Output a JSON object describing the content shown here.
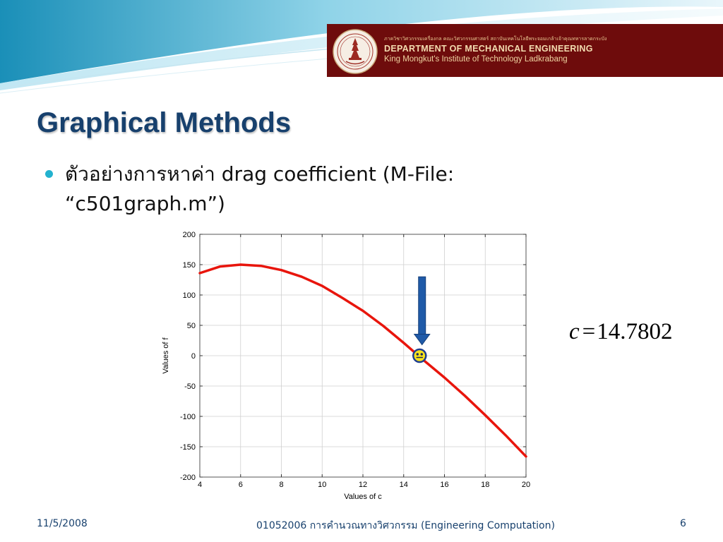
{
  "header": {
    "line1": "ภาควิชาวิศวกรรมเครื่องกล คณะวิศวกรรมศาสตร์ สถาบันเทคโนโลยีพระจอมเกล้าเจ้าคุณทหารลาดกระบัง",
    "line2": "DEPARTMENT OF MECHANICAL ENGINEERING",
    "line3": "King Mongkut's Institute of Technology Ladkrabang",
    "banner_color": "#6e0c0c"
  },
  "slide": {
    "title": "Graphical Methods",
    "bullet_thai": "ตัวอย่างการหาค่า",
    "bullet_rest": "drag coefficient (M-File:",
    "bullet_line2": "“c501graph.m”)"
  },
  "equation": {
    "variable": "c",
    "equals": "=",
    "value": "14.7802"
  },
  "footer": {
    "date": "11/5/2008",
    "course": "01052006 การคำนวณทางวิศวกรรม (Engineering Computation)",
    "page": "6"
  },
  "chart_data": {
    "type": "line",
    "xlabel": "Values of c",
    "ylabel": "Values of f",
    "xlim": [
      4,
      20
    ],
    "ylim": [
      -200,
      200
    ],
    "x_ticks": [
      4,
      6,
      8,
      10,
      12,
      14,
      16,
      18,
      20
    ],
    "y_ticks": [
      200,
      150,
      100,
      50,
      0,
      -50,
      -100,
      -150,
      -200
    ],
    "grid": true,
    "series": [
      {
        "color": "#e8150c",
        "x": [
          4,
          5,
          6,
          7,
          8,
          9,
          10,
          11,
          12,
          13,
          14,
          15,
          16,
          17,
          18,
          19,
          20
        ],
        "y": [
          136,
          147,
          150,
          148,
          141,
          130,
          115,
          95,
          74,
          49,
          21,
          -8,
          -36,
          -66,
          -98,
          -131,
          -166
        ]
      }
    ],
    "root_marker": {
      "x": 14.78,
      "y": 0,
      "icon": "smiley-face-icon"
    },
    "arrow": {
      "x": 14.9,
      "y_from": 130,
      "y_to": 18,
      "icon": "down-arrow-icon",
      "color": "#1f5aa8"
    }
  }
}
